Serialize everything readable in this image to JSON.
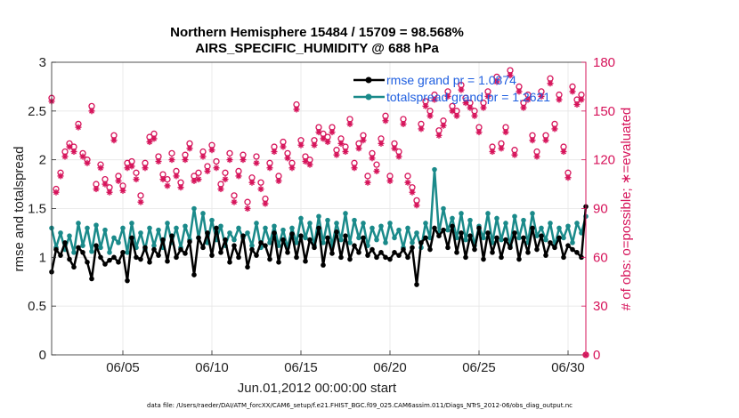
{
  "chart_data": {
    "type": "line",
    "title_line1": "Northern Hemisphere 15484 / 15709 = 98.568%",
    "title_line2": "AIRS_SPECIFIC_HUMIDITY @ 688 hPa",
    "xlabel": "Jun.01,2012 00:00:00 start",
    "ylabel_left": "rmse and totalspread",
    "ylabel_right": "# of obs: o=possible; ∗=evaluated",
    "xlim": [
      1,
      31
    ],
    "ylim_left": [
      0,
      3
    ],
    "ylim_right": [
      0,
      180
    ],
    "x_ticks": [
      5,
      10,
      15,
      20,
      25,
      30
    ],
    "x_tick_labels": [
      "06/05",
      "06/10",
      "06/15",
      "06/20",
      "06/25",
      "06/30"
    ],
    "y_left_ticks": [
      "0",
      "0.5",
      "1",
      "1.5",
      "2",
      "2.5",
      "3"
    ],
    "y_right_ticks": [
      "0",
      "30",
      "60",
      "90",
      "120",
      "150",
      "180"
    ],
    "colors": {
      "rmse": "#000000",
      "spread": "#1a8a8a",
      "obs": "#d6135a",
      "legend_text": "#1f5fe0",
      "grid": "#e6e6e6"
    },
    "series": [
      {
        "name": "rmse grand pr = 1.0874",
        "axis": "left",
        "x": [
          1.0,
          1.25,
          1.5,
          1.75,
          2.0,
          2.25,
          2.5,
          2.75,
          3.0,
          3.25,
          3.5,
          3.75,
          4.0,
          4.25,
          4.5,
          4.75,
          5.0,
          5.25,
          5.5,
          5.75,
          6.0,
          6.25,
          6.5,
          6.75,
          7.0,
          7.25,
          7.5,
          7.75,
          8.0,
          8.25,
          8.5,
          8.75,
          9.0,
          9.25,
          9.5,
          9.75,
          10.0,
          10.25,
          10.5,
          10.75,
          11.0,
          11.25,
          11.5,
          11.75,
          12.0,
          12.25,
          12.5,
          12.75,
          13.0,
          13.25,
          13.5,
          13.75,
          14.0,
          14.25,
          14.5,
          14.75,
          15.0,
          15.25,
          15.5,
          15.75,
          16.0,
          16.25,
          16.5,
          16.75,
          17.0,
          17.25,
          17.5,
          17.75,
          18.0,
          18.25,
          18.5,
          18.75,
          19.0,
          19.25,
          19.5,
          19.75,
          20.0,
          20.25,
          20.5,
          20.75,
          21.0,
          21.25,
          21.5,
          21.75,
          22.0,
          22.25,
          22.5,
          22.75,
          23.0,
          23.25,
          23.5,
          23.75,
          24.0,
          24.25,
          24.5,
          24.75,
          25.0,
          25.25,
          25.5,
          25.75,
          26.0,
          26.25,
          26.5,
          26.75,
          27.0,
          27.25,
          27.5,
          27.75,
          28.0,
          28.25,
          28.5,
          28.75,
          29.0,
          29.25,
          29.5,
          29.75,
          30.0,
          30.25,
          30.5,
          30.75,
          31.0
        ],
        "values": [
          0.85,
          1.08,
          1.02,
          1.15,
          0.98,
          0.9,
          1.1,
          1.05,
          0.95,
          0.78,
          1.12,
          1.0,
          0.93,
          0.97,
          1.0,
          0.95,
          1.05,
          0.76,
          1.2,
          1.0,
          0.98,
          1.1,
          0.95,
          1.08,
          1.02,
          1.18,
          0.96,
          1.22,
          1.0,
          1.08,
          1.04,
          1.16,
          0.82,
          1.2,
          1.1,
          1.25,
          1.02,
          1.3,
          1.05,
          1.18,
          0.95,
          1.12,
          1.0,
          1.22,
          0.9,
          1.08,
          1.02,
          1.15,
          1.12,
          0.98,
          1.25,
          0.95,
          1.18,
          1.05,
          1.24,
          1.0,
          1.22,
          0.96,
          1.18,
          1.1,
          1.3,
          0.92,
          1.2,
          1.04,
          1.26,
          1.0,
          1.22,
          0.98,
          1.12,
          1.05,
          1.2,
          1.02,
          1.08,
          1.0,
          1.05,
          1.0,
          0.98,
          1.05,
          1.02,
          1.08,
          1.0,
          1.1,
          0.72,
          1.15,
          1.2,
          1.08,
          1.3,
          1.22,
          1.28,
          1.1,
          1.32,
          1.05,
          1.25,
          1.0,
          1.22,
          1.08,
          1.3,
          0.98,
          1.25,
          1.05,
          1.2,
          1.0,
          1.18,
          1.1,
          1.25,
          0.98,
          1.2,
          1.05,
          1.3,
          1.08,
          1.22,
          1.02,
          1.15,
          1.1,
          1.2,
          1.0,
          1.12,
          1.08,
          1.05,
          1.0,
          1.52
        ],
        "marker": "o"
      },
      {
        "name": "totalspread grand pr = 1.2621",
        "axis": "left",
        "x": [
          1.0,
          1.25,
          1.5,
          1.75,
          2.0,
          2.25,
          2.5,
          2.75,
          3.0,
          3.25,
          3.5,
          3.75,
          4.0,
          4.25,
          4.5,
          4.75,
          5.0,
          5.25,
          5.5,
          5.75,
          6.0,
          6.25,
          6.5,
          6.75,
          7.0,
          7.25,
          7.5,
          7.75,
          8.0,
          8.25,
          8.5,
          8.75,
          9.0,
          9.25,
          9.5,
          9.75,
          10.0,
          10.25,
          10.5,
          10.75,
          11.0,
          11.25,
          11.5,
          11.75,
          12.0,
          12.25,
          12.5,
          12.75,
          13.0,
          13.25,
          13.5,
          13.75,
          14.0,
          14.25,
          14.5,
          14.75,
          15.0,
          15.25,
          15.5,
          15.75,
          16.0,
          16.25,
          16.5,
          16.75,
          17.0,
          17.25,
          17.5,
          17.75,
          18.0,
          18.25,
          18.5,
          18.75,
          19.0,
          19.25,
          19.5,
          19.75,
          20.0,
          20.25,
          20.5,
          20.75,
          21.0,
          21.25,
          21.5,
          21.75,
          22.0,
          22.25,
          22.5,
          22.75,
          23.0,
          23.25,
          23.5,
          23.75,
          24.0,
          24.25,
          24.5,
          24.75,
          25.0,
          25.25,
          25.5,
          25.75,
          26.0,
          26.25,
          26.5,
          26.75,
          27.0,
          27.25,
          27.5,
          27.75,
          28.0,
          28.25,
          28.5,
          28.75,
          29.0,
          29.25,
          29.5,
          29.75,
          30.0,
          30.25,
          30.5,
          30.75,
          31.0
        ],
        "values": [
          1.3,
          1.1,
          1.25,
          1.08,
          1.22,
          1.05,
          1.35,
          1.12,
          1.3,
          1.06,
          1.33,
          1.1,
          1.28,
          1.05,
          1.2,
          1.15,
          1.3,
          1.05,
          1.35,
          1.1,
          1.25,
          1.08,
          1.3,
          1.12,
          1.28,
          1.1,
          1.35,
          1.15,
          1.3,
          1.1,
          1.32,
          1.18,
          1.5,
          1.2,
          1.45,
          1.15,
          1.38,
          1.18,
          1.32,
          1.12,
          1.25,
          1.18,
          1.3,
          1.2,
          1.25,
          1.12,
          1.35,
          1.1,
          1.3,
          1.15,
          1.32,
          1.12,
          1.28,
          1.1,
          1.3,
          1.15,
          1.4,
          1.2,
          1.35,
          1.12,
          1.42,
          1.15,
          1.38,
          1.12,
          1.35,
          1.18,
          1.45,
          1.15,
          1.38,
          1.2,
          1.35,
          1.12,
          1.3,
          1.18,
          1.32,
          1.15,
          1.35,
          1.2,
          1.28,
          1.1,
          1.3,
          1.15,
          1.25,
          1.1,
          1.35,
          1.2,
          1.9,
          1.25,
          1.5,
          1.28,
          1.4,
          1.2,
          1.45,
          1.18,
          1.38,
          1.12,
          1.32,
          1.2,
          1.45,
          1.15,
          1.4,
          1.18,
          1.35,
          1.12,
          1.42,
          1.2,
          1.38,
          1.15,
          1.45,
          1.22,
          1.3,
          1.18,
          1.35,
          1.12,
          1.3,
          1.2,
          1.32,
          1.15,
          1.35,
          1.25,
          1.42
        ],
        "marker": "o"
      },
      {
        "name": "possible",
        "axis": "right",
        "marker": "o",
        "x": [
          1.0,
          1.25,
          1.5,
          1.75,
          2.0,
          2.25,
          2.5,
          2.75,
          3.0,
          3.25,
          3.5,
          3.75,
          4.0,
          4.25,
          4.5,
          4.75,
          5.0,
          5.25,
          5.5,
          5.75,
          6.0,
          6.25,
          6.5,
          6.75,
          7.0,
          7.25,
          7.5,
          7.75,
          8.0,
          8.25,
          8.5,
          8.75,
          9.0,
          9.25,
          9.5,
          9.75,
          10.0,
          10.25,
          10.5,
          10.75,
          11.0,
          11.25,
          11.5,
          11.75,
          12.0,
          12.25,
          12.5,
          12.75,
          13.0,
          13.25,
          13.5,
          13.75,
          14.0,
          14.25,
          14.5,
          14.75,
          15.0,
          15.25,
          15.5,
          15.75,
          16.0,
          16.25,
          16.5,
          16.75,
          17.0,
          17.25,
          17.5,
          17.75,
          18.0,
          18.25,
          18.5,
          18.75,
          19.0,
          19.25,
          19.5,
          19.75,
          20.0,
          20.25,
          20.5,
          20.75,
          21.0,
          21.25,
          21.5,
          21.75,
          22.0,
          22.25,
          22.5,
          22.75,
          23.0,
          23.25,
          23.5,
          23.75,
          24.0,
          24.25,
          24.5,
          24.75,
          25.0,
          25.25,
          25.5,
          25.75,
          26.0,
          26.25,
          26.5,
          26.75,
          27.0,
          27.25,
          27.5,
          27.75,
          28.0,
          28.25,
          28.5,
          28.75,
          29.0,
          29.25,
          29.5,
          29.75,
          30.0,
          30.25,
          30.5,
          30.75,
          31.0
        ],
        "values": [
          158,
          102,
          112,
          125,
          130,
          128,
          142,
          124,
          120,
          153,
          105,
          117,
          108,
          103,
          135,
          110,
          104,
          118,
          119,
          112,
          98,
          118,
          134,
          136,
          122,
          111,
          108,
          124,
          113,
          106,
          123,
          130,
          110,
          112,
          125,
          116,
          129,
          119,
          105,
          112,
          124,
          98,
          113,
          123,
          94,
          109,
          122,
          106,
          96,
          118,
          128,
          110,
          131,
          124,
          118,
          154,
          132,
          122,
          120,
          132,
          140,
          136,
          134,
          140,
          126,
          133,
          128,
          145,
          118,
          130,
          135,
          110,
          124,
          117,
          133,
          147,
          110,
          130,
          125,
          145,
          110,
          103,
          95,
          142,
          156,
          150,
          160,
          138,
          144,
          162,
          153,
          150,
          166,
          158,
          155,
          150,
          140,
          155,
          162,
          128,
          171,
          130,
          140,
          175,
          126,
          165,
          155,
          160,
          135,
          125,
          162,
          135,
          170,
          142,
          160,
          128,
          112,
          165,
          157,
          160,
          0
        ],
        "label": "o=possible"
      },
      {
        "name": "evaluated",
        "axis": "right",
        "marker": "*",
        "x": [
          1.0,
          1.25,
          1.5,
          1.75,
          2.0,
          2.25,
          2.5,
          2.75,
          3.0,
          3.25,
          3.5,
          3.75,
          4.0,
          4.25,
          4.5,
          4.75,
          5.0,
          5.25,
          5.5,
          5.75,
          6.0,
          6.25,
          6.5,
          6.75,
          7.0,
          7.25,
          7.5,
          7.75,
          8.0,
          8.25,
          8.5,
          8.75,
          9.0,
          9.25,
          9.5,
          9.75,
          10.0,
          10.25,
          10.5,
          10.75,
          11.0,
          11.25,
          11.5,
          11.75,
          12.0,
          12.25,
          12.5,
          12.75,
          13.0,
          13.25,
          13.5,
          13.75,
          14.0,
          14.25,
          14.5,
          14.75,
          15.0,
          15.25,
          15.5,
          15.75,
          16.0,
          16.25,
          16.5,
          16.75,
          17.0,
          17.25,
          17.5,
          17.75,
          18.0,
          18.25,
          18.5,
          18.75,
          19.0,
          19.25,
          19.5,
          19.75,
          20.0,
          20.25,
          20.5,
          20.75,
          21.0,
          21.25,
          21.5,
          21.75,
          22.0,
          22.25,
          22.5,
          22.75,
          23.0,
          23.25,
          23.5,
          23.75,
          24.0,
          24.25,
          24.5,
          24.75,
          25.0,
          25.25,
          25.5,
          25.75,
          26.0,
          26.25,
          26.5,
          26.75,
          27.0,
          27.25,
          27.5,
          27.75,
          28.0,
          28.25,
          28.5,
          28.75,
          29.0,
          29.25,
          29.5,
          29.75,
          30.0,
          30.25,
          30.5,
          30.75,
          31.0
        ],
        "values": [
          156,
          100,
          110,
          122,
          128,
          125,
          140,
          122,
          118,
          150,
          102,
          115,
          105,
          100,
          132,
          107,
          101,
          115,
          116,
          108,
          94,
          115,
          131,
          133,
          119,
          108,
          104,
          120,
          110,
          103,
          120,
          127,
          107,
          108,
          122,
          113,
          126,
          115,
          102,
          108,
          120,
          94,
          110,
          120,
          90,
          106,
          118,
          102,
          93,
          115,
          125,
          107,
          128,
          121,
          115,
          151,
          129,
          119,
          117,
          129,
          137,
          133,
          131,
          137,
          123,
          130,
          125,
          142,
          115,
          127,
          132,
          106,
          121,
          113,
          130,
          144,
          107,
          127,
          122,
          142,
          106,
          100,
          92,
          139,
          153,
          147,
          157,
          135,
          141,
          159,
          150,
          147,
          163,
          155,
          152,
          147,
          137,
          152,
          159,
          125,
          168,
          127,
          137,
          172,
          123,
          162,
          152,
          157,
          132,
          122,
          159,
          132,
          167,
          139,
          157,
          125,
          109,
          162,
          154,
          157,
          0
        ],
        "label": "∗=evaluated"
      }
    ],
    "legend": [
      "rmse grand pr = 1.0874",
      "totalspread grand pr = 1.2621"
    ],
    "legend_location": "top-right",
    "grid": true
  },
  "footer": "data file: /Users/raeder/DAI/ATM_forcXX/CAM6_setup/f.e21.FHIST_BGC.f09_025.CAM6assim.011/Diags_NTrS_2012-06/obs_diag_output.nc"
}
